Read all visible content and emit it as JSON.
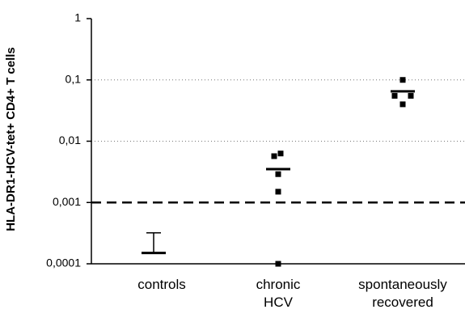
{
  "chart_data": {
    "type": "scatter",
    "y_label": "HLA-DR1-HCV-tet+ CD4+ T cells",
    "categories": [
      "controls",
      "chronic HCV",
      "spontaneously recovered"
    ],
    "points": [
      [],
      [
        0.0063,
        0.0057,
        0.0029,
        0.0015,
        0.0001
      ],
      [
        0.1,
        0.055,
        0.055,
        0.04
      ]
    ],
    "means": [
      0.00015,
      0.0035,
      0.065
    ],
    "mean_upper_error": [
      0.00032,
      null,
      null
    ],
    "threshold": 0.001,
    "ylim": [
      0.0001,
      1
    ],
    "log_y": true,
    "grid": true,
    "color": "#000000",
    "yticks": [
      {
        "value": 0.0001,
        "label": "0,0001"
      },
      {
        "value": 0.001,
        "label": "0,001"
      },
      {
        "value": 0.01,
        "label": "0,01"
      },
      {
        "value": 0.1,
        "label": "0,1"
      },
      1
    ]
  }
}
